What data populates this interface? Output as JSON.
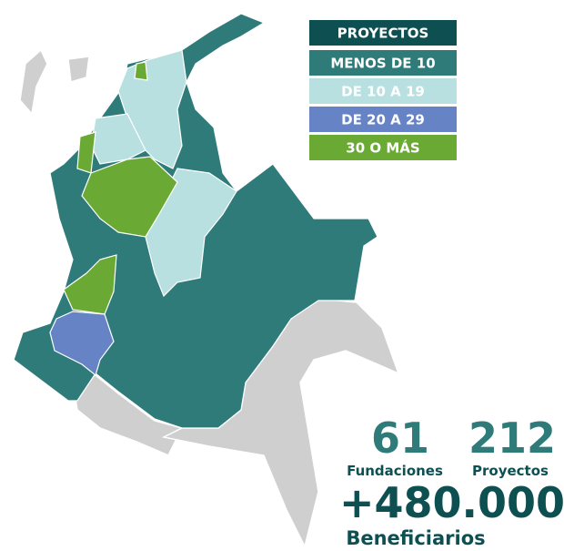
{
  "legend": {
    "title": "PROYECTOS",
    "title_color": "#0e4f52",
    "items": [
      {
        "label": "MENOS DE 10",
        "color": "#2e7b7a"
      },
      {
        "label": "DE 10 A 19",
        "color": "#b8e0e1"
      },
      {
        "label": "DE 20 A 29",
        "color": "#6683c6"
      },
      {
        "label": "30 O MÁS",
        "color": "#6aaa34"
      }
    ]
  },
  "stats": [
    {
      "value": 61,
      "label": "Fundaciones"
    },
    {
      "value": 212,
      "label": "Proyectos"
    }
  ],
  "beneficiaries": {
    "value": "+480.000",
    "label": "Beneficiarios"
  }
}
